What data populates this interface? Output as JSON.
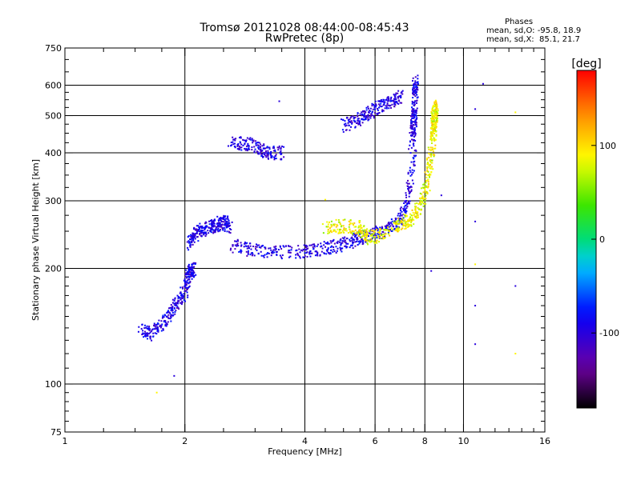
{
  "title_line1": "Tromsø 20121028 08:44:00-08:45:43",
  "title_line2": "RwPretec (8p)",
  "phases_header": "Phases",
  "phases_o": "mean, sd,O: -95.8, 18.9",
  "phases_x": "mean, sd,X:  85.1, 21.7",
  "chart_data": {
    "type": "scatter",
    "xlabel": "Frequency [MHz]",
    "ylabel": "Stationary phase Virtual Height [km]",
    "x_scale": "log2",
    "y_scale": "log",
    "xlim": [
      1,
      16
    ],
    "ylim": [
      75,
      750
    ],
    "xtick_labels": [
      "1",
      "2",
      "4",
      "6",
      "8",
      "10",
      "16"
    ],
    "xticks": [
      1,
      2,
      4,
      6,
      8,
      10,
      16
    ],
    "ytick_labels": [
      "75",
      "100",
      "200",
      "300",
      "400",
      "500",
      "600",
      "750"
    ],
    "yticks": [
      75,
      100,
      200,
      300,
      400,
      500,
      600,
      750
    ],
    "grid_x": [
      2,
      4,
      6,
      8,
      10
    ],
    "grid_y": [
      100,
      200,
      300,
      400,
      500,
      600
    ],
    "grid": true,
    "colorbar": {
      "label": "[deg]",
      "ticks": [
        100,
        0,
        -100
      ],
      "tick_labels": [
        "100",
        "0",
        "-100"
      ],
      "range": [
        -180,
        180
      ]
    },
    "series": [
      {
        "note": "O-mode trace (blue/purple)",
        "phase_mean": -95.8,
        "phase_sd": 18.9,
        "segments": [
          {
            "f": [
              1.55,
              1.65,
              1.8,
              1.9,
              2.0,
              2.05,
              2.1
            ],
            "h": [
              138,
              135,
              148,
              160,
              175,
              195,
              200
            ]
          },
          {
            "f": [
              2.05,
              2.15,
              2.3,
              2.4,
              2.5,
              2.6
            ],
            "h": [
              230,
              250,
              255,
              260,
              265,
              255
            ]
          },
          {
            "f": [
              2.6,
              3.0,
              3.5,
              4.0,
              4.5,
              5.0,
              5.5,
              6.0,
              6.5,
              7.0,
              7.3,
              7.5
            ],
            "h": [
              230,
              222,
              220,
              222,
              225,
              232,
              240,
              245,
              255,
              270,
              310,
              400
            ]
          },
          {
            "f": [
              7.4,
              7.5,
              7.55,
              7.6
            ],
            "h": [
              420,
              480,
              550,
              620
            ]
          },
          {
            "f": [
              2.6,
              2.9,
              3.2,
              3.5
            ],
            "h": [
              430,
              420,
              400,
              400
            ]
          },
          {
            "f": [
              5.0,
              5.5,
              6.0,
              6.5,
              7.0
            ],
            "h": [
              470,
              490,
              520,
              540,
              560
            ]
          }
        ]
      },
      {
        "note": "X-mode trace (yellow/green)",
        "phase_mean": 85.1,
        "phase_sd": 21.7,
        "segments": [
          {
            "f": [
              4.5,
              5.0,
              5.5,
              5.8,
              6.3,
              6.9,
              7.4,
              7.8,
              8.1,
              8.3,
              8.5
            ],
            "h": [
              255,
              258,
              255,
              240,
              245,
              260,
              270,
              290,
              330,
              400,
              500
            ]
          },
          {
            "f": [
              8.4,
              8.45,
              8.5
            ],
            "h": [
              450,
              500,
              530
            ]
          }
        ]
      }
    ],
    "isolated_points": [
      {
        "f": 1.7,
        "h": 95
      },
      {
        "f": 1.88,
        "h": 105
      },
      {
        "f": 3.45,
        "h": 545
      },
      {
        "f": 4.5,
        "h": 302
      },
      {
        "f": 8.8,
        "h": 310
      },
      {
        "f": 10.7,
        "h": 265
      },
      {
        "f": 10.7,
        "h": 205
      },
      {
        "f": 10.7,
        "h": 160
      },
      {
        "f": 10.7,
        "h": 127
      },
      {
        "f": 13.5,
        "h": 120
      },
      {
        "f": 13.5,
        "h": 180
      },
      {
        "f": 11.2,
        "h": 605
      },
      {
        "f": 13.5,
        "h": 510
      },
      {
        "f": 10.7,
        "h": 520
      },
      {
        "f": 8.3,
        "h": 197
      }
    ]
  }
}
